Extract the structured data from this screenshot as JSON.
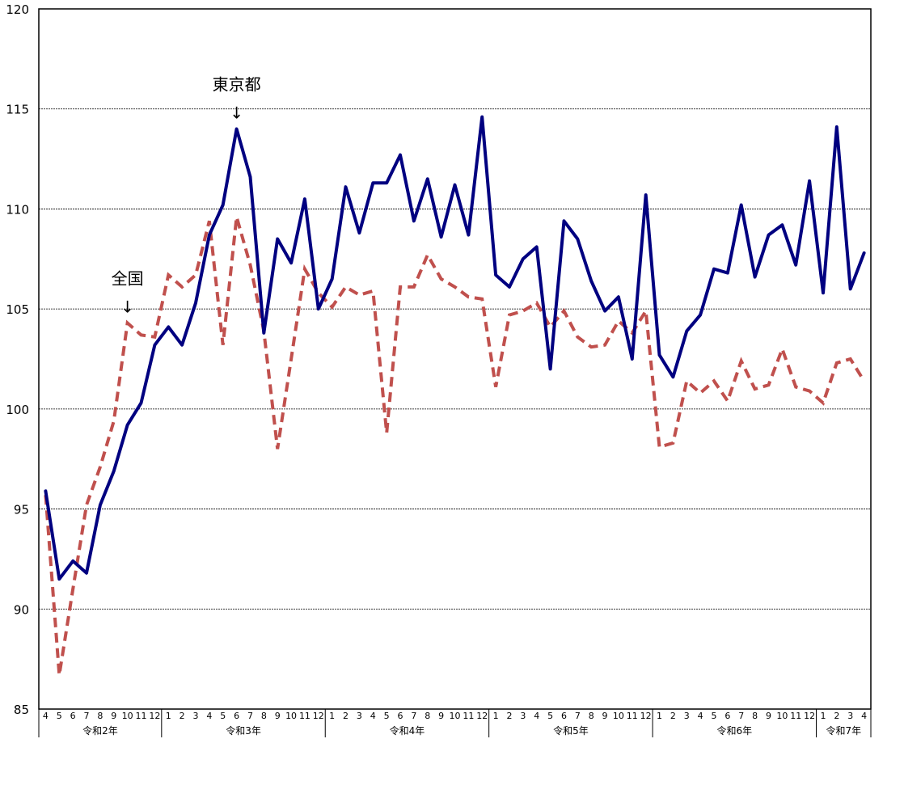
{
  "chart_data": {
    "type": "line",
    "title": "",
    "xlabel": "",
    "ylabel": "",
    "ylim": [
      85,
      120
    ],
    "yticks": [
      85,
      90,
      95,
      100,
      105,
      110,
      115,
      120
    ],
    "grid": true,
    "x": [
      "4",
      "5",
      "6",
      "7",
      "8",
      "9",
      "10",
      "11",
      "12",
      "1",
      "2",
      "3",
      "4",
      "5",
      "6",
      "7",
      "8",
      "9",
      "10",
      "11",
      "12",
      "1",
      "2",
      "3",
      "4",
      "5",
      "6",
      "7",
      "8",
      "9",
      "10",
      "11",
      "12",
      "1",
      "2",
      "3",
      "4",
      "5",
      "6",
      "7",
      "8",
      "9",
      "10",
      "11",
      "12",
      "1",
      "2",
      "3",
      "4",
      "5",
      "6",
      "7",
      "8",
      "9",
      "10",
      "11",
      "12",
      "1",
      "2",
      "3",
      "4"
    ],
    "year_groups": [
      {
        "label": "令和2年",
        "start": 0,
        "count": 9
      },
      {
        "label": "令和3年",
        "start": 9,
        "count": 12
      },
      {
        "label": "令和4年",
        "start": 21,
        "count": 12
      },
      {
        "label": "令和5年",
        "start": 33,
        "count": 12
      },
      {
        "label": "令和6年",
        "start": 45,
        "count": 12
      },
      {
        "label": "令和7年",
        "start": 57,
        "count": 4
      }
    ],
    "series": [
      {
        "name": "東京都",
        "color": "#000080",
        "style": "solid",
        "values": [
          95.9,
          91.5,
          92.4,
          91.8,
          95.2,
          96.9,
          99.2,
          100.3,
          103.2,
          104.1,
          103.2,
          105.3,
          108.7,
          110.2,
          114.0,
          111.6,
          103.8,
          108.5,
          107.3,
          110.5,
          105.0,
          106.5,
          111.1,
          108.8,
          111.3,
          111.3,
          112.7,
          109.4,
          111.5,
          108.6,
          111.2,
          108.7,
          114.6,
          106.7,
          106.1,
          107.5,
          108.1,
          102.0,
          109.4,
          108.5,
          106.4,
          104.9,
          105.6,
          102.5,
          110.7,
          102.7,
          101.6,
          103.9,
          104.7,
          107.0,
          106.8,
          110.2,
          106.6,
          108.7,
          109.2,
          107.2,
          111.4,
          105.8,
          114.1,
          106.0,
          107.8
        ]
      },
      {
        "name": "全国",
        "color": "#C0504D",
        "style": "dashed",
        "values": [
          95.7,
          86.7,
          91.0,
          95.2,
          97.1,
          99.4,
          104.3,
          103.7,
          103.6,
          106.7,
          106.1,
          106.7,
          109.4,
          103.2,
          109.6,
          107.2,
          103.9,
          98.0,
          102.5,
          107.0,
          105.8,
          105.1,
          106.1,
          105.7,
          105.9,
          98.8,
          106.1,
          106.1,
          107.7,
          106.5,
          106.1,
          105.6,
          105.5,
          101.1,
          104.7,
          104.9,
          105.3,
          104.1,
          104.9,
          103.6,
          103.1,
          103.2,
          104.4,
          103.8,
          104.9,
          98.1,
          98.3,
          101.4,
          100.8,
          101.4,
          100.4,
          102.4,
          101.0,
          101.2,
          103.0,
          101.1,
          100.9,
          100.3,
          102.3,
          102.5,
          101.4
        ]
      }
    ],
    "annotations": [
      {
        "label": "東京都",
        "arrow": "↓",
        "series": "東京都",
        "index": 14
      },
      {
        "label": "全国",
        "arrow": "↓",
        "series": "全国",
        "index": 6
      }
    ]
  }
}
